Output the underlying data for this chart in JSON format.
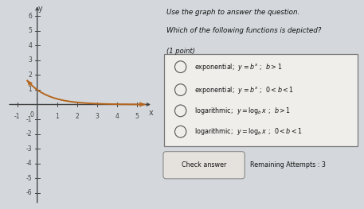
{
  "curve_color": "#b5651d",
  "background_color": "#d4d8dc",
  "axis_color": "#444444",
  "text_color": "#111111",
  "xlim": [
    -1.5,
    5.8
  ],
  "ylim": [
    -6.8,
    6.8
  ],
  "xticks": [
    -1,
    1,
    2,
    3,
    4,
    5
  ],
  "yticks": [
    -6,
    -5,
    -4,
    -3,
    -2,
    -1,
    1,
    2,
    3,
    4,
    5,
    6
  ],
  "b": 0.38,
  "x_start": -0.5,
  "x_end": 5.4,
  "graph_axes": [
    0.02,
    0.02,
    0.4,
    0.96
  ],
  "text_axes": [
    0.44,
    0.0,
    0.56,
    1.0
  ],
  "title1": "Use the graph to answer the question.",
  "title2": "Which of the following functions is depicted?",
  "point_label": "(1 point)",
  "options": [
    "exponential;  $y = b^x$ ;  $b > 1$",
    "exponential;  $y = b^x$ ;  $0 < b < 1$",
    "logarithmic;  $y = \\log_b x$ ;  $b > 1$",
    "logarithmic;  $y = \\log_b x$ ;  $0 < b < 1$"
  ],
  "button_text": "Check answer",
  "remaining_text": "Remaining Attempts : 3"
}
